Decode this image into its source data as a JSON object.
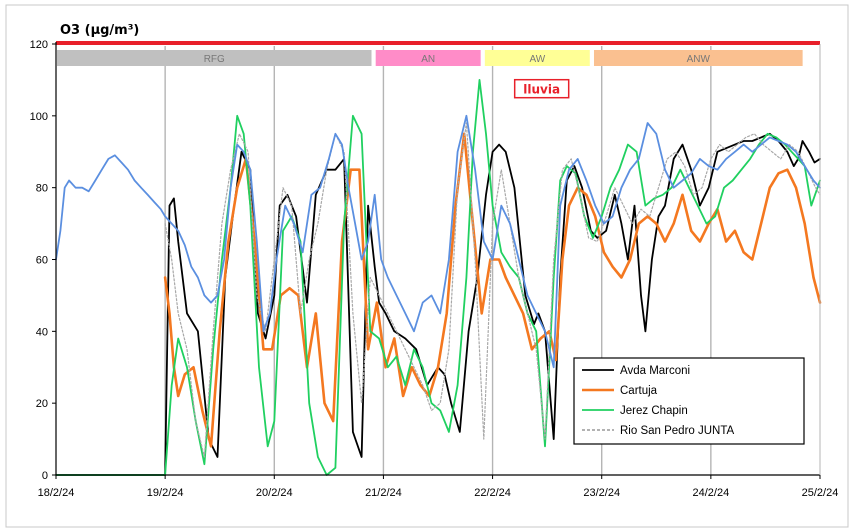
{
  "chart_data": {
    "type": "line",
    "title": "O3 (µg/m³)",
    "xlabel": "",
    "ylabel": "",
    "ylim": [
      0,
      120
    ],
    "yticks": [
      0,
      20,
      40,
      60,
      80,
      100,
      120
    ],
    "xlim": [
      0,
      7
    ],
    "xtick_labels": [
      "18/2/24",
      "19/2/24",
      "20/2/24",
      "21/2/24",
      "22/2/24",
      "23/2/24",
      "24/2/24",
      "25/2/24"
    ],
    "grid": "vertical day lines",
    "legend_position": "bottom-right",
    "colors": {
      "frame": "#c8c8c8",
      "top_bar": "#e8202a",
      "gridline": "#b4b4b4"
    },
    "bands": [
      {
        "label": "RFG",
        "from": 0.0,
        "to": 2.9,
        "color": "#c0c0c0"
      },
      {
        "label": "AN",
        "from": 2.92,
        "to": 3.9,
        "color": "#ff8cc8"
      },
      {
        "label": "AW",
        "from": 3.92,
        "to": 4.9,
        "color": "#ffff96"
      },
      {
        "label": "ANW",
        "from": 4.92,
        "to": 6.85,
        "color": "#fac090"
      }
    ],
    "annotation": {
      "label": "lluvia",
      "x": 4.45,
      "y": 107,
      "color": "#e8202a"
    },
    "series": [
      {
        "name": "Avda Marconi",
        "color": "#000000",
        "width": 1.8,
        "x": [
          0.0,
          0.9,
          1.0,
          1.04,
          1.08,
          1.12,
          1.2,
          1.3,
          1.4,
          1.48,
          1.55,
          1.62,
          1.7,
          1.78,
          1.85,
          1.92,
          2.0,
          2.05,
          2.12,
          2.2,
          2.3,
          2.38,
          2.48,
          2.56,
          2.64,
          2.72,
          2.8,
          2.86,
          2.92,
          2.96,
          3.02,
          3.1,
          3.2,
          3.3,
          3.4,
          3.5,
          3.56,
          3.62,
          3.7,
          3.78,
          3.86,
          3.94,
          4.0,
          4.06,
          4.12,
          4.2,
          4.3,
          4.38,
          4.42,
          4.48,
          4.56,
          4.62,
          4.68,
          4.75,
          4.82,
          4.9,
          4.96,
          5.04,
          5.12,
          5.18,
          5.24,
          5.3,
          5.36,
          5.4,
          5.46,
          5.52,
          5.58,
          5.66,
          5.74,
          5.82,
          5.9,
          5.98,
          6.06,
          6.14,
          6.22,
          6.3,
          6.38,
          6.46,
          6.54,
          6.62,
          6.7,
          6.76,
          6.8,
          6.84,
          6.9,
          6.95,
          7.0
        ],
        "y": [
          0,
          0,
          0,
          75,
          77,
          65,
          45,
          40,
          10,
          5,
          55,
          72,
          90,
          85,
          45,
          38,
          50,
          75,
          78,
          72,
          48,
          78,
          85,
          85,
          88,
          12,
          5,
          75,
          58,
          48,
          45,
          40,
          38,
          35,
          25,
          30,
          28,
          20,
          12,
          40,
          55,
          78,
          90,
          92,
          90,
          80,
          50,
          42,
          45,
          40,
          10,
          55,
          82,
          86,
          80,
          68,
          66,
          68,
          78,
          70,
          60,
          75,
          50,
          40,
          60,
          72,
          75,
          88,
          92,
          85,
          75,
          80,
          90,
          91,
          92,
          93,
          93,
          94,
          95,
          93,
          90,
          86,
          88,
          93,
          90,
          87,
          88
        ]
      },
      {
        "name": "Cartuja",
        "color": "#f47820",
        "width": 2.6,
        "x": [
          1.0,
          1.04,
          1.08,
          1.12,
          1.18,
          1.26,
          1.34,
          1.42,
          1.5,
          1.58,
          1.66,
          1.74,
          1.82,
          1.9,
          1.98,
          2.06,
          2.14,
          2.22,
          2.3,
          2.38,
          2.46,
          2.54,
          2.62,
          2.7,
          2.78,
          2.86,
          2.94,
          3.02,
          3.1,
          3.18,
          3.26,
          3.34,
          3.42,
          3.5,
          3.58,
          3.66,
          3.74,
          3.82,
          3.9,
          3.98,
          4.06,
          4.12,
          4.2,
          4.28,
          4.36,
          4.44,
          4.52,
          4.58,
          4.64,
          4.7,
          4.78,
          4.86,
          4.94,
          5.02,
          5.1,
          5.18,
          5.26,
          5.34,
          5.42,
          5.5,
          5.58,
          5.66,
          5.74,
          5.82,
          5.9,
          5.98,
          6.06,
          6.14,
          6.22,
          6.3,
          6.38,
          6.46,
          6.54,
          6.62,
          6.7,
          6.78,
          6.86,
          6.94,
          7.0
        ],
        "y": [
          55,
          45,
          30,
          22,
          28,
          30,
          18,
          8,
          40,
          65,
          80,
          88,
          65,
          35,
          35,
          50,
          52,
          50,
          30,
          45,
          20,
          15,
          65,
          85,
          85,
          35,
          48,
          30,
          38,
          22,
          30,
          25,
          22,
          30,
          45,
          75,
          95,
          70,
          45,
          60,
          60,
          55,
          50,
          45,
          35,
          38,
          40,
          32,
          60,
          75,
          80,
          78,
          72,
          62,
          58,
          55,
          60,
          70,
          72,
          70,
          65,
          70,
          78,
          68,
          65,
          70,
          74,
          65,
          68,
          62,
          60,
          70,
          80,
          84,
          85,
          80,
          70,
          55,
          48
        ]
      },
      {
        "name": "Jerez Chapin",
        "color": "#20d060",
        "width": 1.8,
        "x": [
          0.0,
          0.9,
          1.0,
          1.06,
          1.12,
          1.2,
          1.28,
          1.36,
          1.44,
          1.52,
          1.6,
          1.66,
          1.72,
          1.78,
          1.86,
          1.94,
          2.0,
          2.08,
          2.16,
          2.24,
          2.32,
          2.4,
          2.48,
          2.56,
          2.64,
          2.72,
          2.8,
          2.88,
          2.96,
          3.04,
          3.12,
          3.2,
          3.28,
          3.36,
          3.44,
          3.52,
          3.6,
          3.68,
          3.76,
          3.82,
          3.88,
          3.94,
          4.0,
          4.08,
          4.16,
          4.24,
          4.32,
          4.4,
          4.48,
          4.56,
          4.62,
          4.68,
          4.76,
          4.84,
          4.92,
          5.0,
          5.08,
          5.16,
          5.24,
          5.32,
          5.4,
          5.48,
          5.56,
          5.64,
          5.72,
          5.8,
          5.88,
          5.96,
          6.04,
          6.12,
          6.2,
          6.28,
          6.36,
          6.44,
          6.52,
          6.6,
          6.68,
          6.74,
          6.8,
          6.86,
          6.92,
          7.0
        ],
        "y": [
          0,
          0,
          0,
          25,
          38,
          30,
          15,
          3,
          35,
          60,
          80,
          100,
          95,
          75,
          30,
          8,
          15,
          68,
          72,
          65,
          20,
          5,
          0,
          2,
          70,
          100,
          95,
          40,
          38,
          30,
          33,
          25,
          35,
          30,
          20,
          18,
          12,
          25,
          55,
          90,
          110,
          95,
          75,
          62,
          58,
          55,
          45,
          40,
          8,
          55,
          82,
          86,
          84,
          72,
          66,
          72,
          80,
          85,
          92,
          90,
          75,
          77,
          78,
          80,
          85,
          80,
          75,
          70,
          72,
          80,
          82,
          85,
          88,
          92,
          95,
          94,
          92,
          90,
          88,
          86,
          75,
          82
        ]
      },
      {
        "name": "Rio San Pedro JUNTA",
        "color": "#a8a8a8",
        "width": 1.2,
        "dashed": true,
        "x": [
          1.0,
          1.06,
          1.12,
          1.2,
          1.28,
          1.36,
          1.44,
          1.52,
          1.6,
          1.68,
          1.76,
          1.84,
          1.92,
          2.0,
          2.08,
          2.16,
          2.24,
          2.32,
          2.4,
          2.48,
          2.56,
          2.64,
          2.72,
          2.8,
          2.88,
          2.96,
          3.04,
          3.12,
          3.2,
          3.28,
          3.36,
          3.44,
          3.52,
          3.6,
          3.68,
          3.76,
          3.84,
          3.92,
          4.0,
          4.08,
          4.16,
          4.24,
          4.32,
          4.4,
          4.48,
          4.56,
          4.64,
          4.72,
          4.8,
          4.88,
          4.96,
          5.04,
          5.12,
          5.2,
          5.28,
          5.36,
          5.44,
          5.52,
          5.6,
          5.68,
          5.76,
          5.84,
          5.92,
          6.0,
          6.08,
          6.16,
          6.24,
          6.32,
          6.4,
          6.48,
          6.56,
          6.64,
          6.72,
          6.8,
          6.88,
          6.96,
          7.0
        ],
        "y": [
          70,
          60,
          45,
          35,
          15,
          5,
          40,
          70,
          85,
          95,
          90,
          50,
          40,
          60,
          80,
          75,
          45,
          60,
          70,
          85,
          95,
          90,
          45,
          20,
          55,
          50,
          45,
          40,
          35,
          30,
          25,
          18,
          20,
          35,
          80,
          98,
          60,
          10,
          70,
          85,
          70,
          55,
          45,
          35,
          10,
          60,
          85,
          88,
          78,
          66,
          65,
          72,
          80,
          75,
          70,
          74,
          72,
          80,
          88,
          90,
          86,
          78,
          80,
          88,
          92,
          90,
          92,
          94,
          95,
          92,
          90,
          88,
          92,
          90,
          85,
          80,
          78
        ]
      },
      {
        "name": "",
        "color": "#5b8fe0",
        "width": 1.8,
        "x": [
          0.0,
          0.04,
          0.08,
          0.12,
          0.18,
          0.24,
          0.3,
          0.36,
          0.42,
          0.48,
          0.54,
          0.6,
          0.66,
          0.72,
          0.78,
          0.84,
          0.9,
          0.96,
          1.0,
          1.06,
          1.12,
          1.18,
          1.24,
          1.3,
          1.36,
          1.42,
          1.48,
          1.54,
          1.6,
          1.66,
          1.72,
          1.78,
          1.84,
          1.9,
          1.96,
          2.02,
          2.1,
          2.18,
          2.26,
          2.34,
          2.42,
          2.5,
          2.56,
          2.62,
          2.68,
          2.74,
          2.8,
          2.86,
          2.92,
          2.98,
          3.04,
          3.12,
          3.2,
          3.28,
          3.36,
          3.44,
          3.52,
          3.6,
          3.68,
          3.76,
          3.84,
          3.92,
          4.0,
          4.08,
          4.16,
          4.24,
          4.32,
          4.4,
          4.48,
          4.56,
          4.62,
          4.7,
          4.78,
          4.86,
          4.94,
          5.02,
          5.1,
          5.18,
          5.26,
          5.34,
          5.42,
          5.5,
          5.58,
          5.66,
          5.74,
          5.82,
          5.9,
          5.98,
          6.06,
          6.14,
          6.22,
          6.3,
          6.38,
          6.46,
          6.54,
          6.62,
          6.7,
          6.78,
          6.86,
          6.94,
          7.0
        ],
        "y": [
          60,
          68,
          80,
          82,
          80,
          80,
          79,
          82,
          85,
          88,
          89,
          87,
          85,
          82,
          80,
          78,
          76,
          74,
          72,
          70,
          68,
          64,
          58,
          55,
          50,
          48,
          50,
          60,
          80,
          92,
          90,
          85,
          65,
          40,
          45,
          60,
          75,
          70,
          62,
          78,
          80,
          88,
          95,
          92,
          80,
          70,
          60,
          65,
          78,
          60,
          55,
          50,
          45,
          40,
          48,
          50,
          45,
          60,
          90,
          100,
          85,
          65,
          60,
          75,
          70,
          60,
          50,
          45,
          40,
          30,
          75,
          85,
          88,
          82,
          75,
          70,
          72,
          80,
          85,
          88,
          98,
          95,
          85,
          80,
          82,
          84,
          88,
          86,
          85,
          88,
          90,
          92,
          90,
          92,
          94,
          93,
          92,
          90,
          86,
          82,
          80
        ]
      }
    ]
  }
}
